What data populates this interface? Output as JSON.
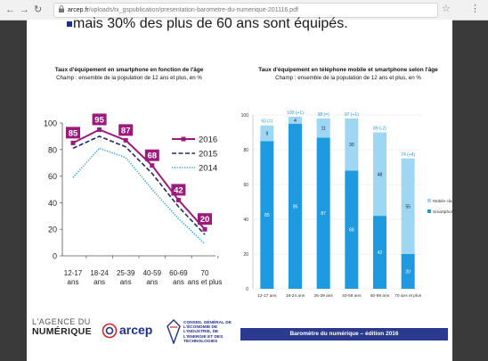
{
  "browser": {
    "url_host": "arcep.fr",
    "url_path": "/uploads/tx_gspublication/presentation-barometre-du-numerique-201116.pdf",
    "menu_icon": "kebab-menu-icon",
    "star_icon": "bookmark-star-icon"
  },
  "slide": {
    "bullet_text": "mais 30% des plus de 60 ans sont équipés.",
    "footer_text": "Baromètre  du numérique – édition 2016",
    "logos": {
      "agence_line1": "L'AGENCE DU",
      "agence_line2": "NUMÉRIQUE",
      "arcep": "arcep",
      "cge": "CONSEIL GÉNÉRAL DE L'ÉCONOMIE DE L'INDUSTRIE, DE L'ÉNERGIE ET DES TECHNOLOGIES"
    }
  },
  "chart_left": {
    "title": "Taux d'équipement en smartphone en fonction de l'âge",
    "subtitle": "Champ : ensemble de la population de 12 ans et plus, en %"
  },
  "chart_right": {
    "title": "Taux d'équipement en téléphone mobile et smartphone selon l'âge",
    "subtitle": "Champ : ensemble de la population de 12 ans et plus, en %"
  },
  "chart_data": [
    {
      "type": "line",
      "categories": [
        "12-17 ans",
        "18-24 ans",
        "25-39 ans",
        "40-59 ans",
        "60-69 ans",
        "70 ans et plus"
      ],
      "ylim": [
        0,
        100
      ],
      "yticks": [
        0,
        20,
        40,
        60,
        80,
        100
      ],
      "series": [
        {
          "name": "2016",
          "values": [
            85,
            95,
            87,
            68,
            42,
            20
          ],
          "color": "#9c1a7c",
          "labeled": true
        },
        {
          "name": "2015",
          "values": [
            81,
            90,
            82,
            62,
            37,
            16
          ],
          "color": "#1d2a6b"
        },
        {
          "name": "2014",
          "values": [
            59,
            81,
            74,
            50,
            28,
            9
          ],
          "color": "#2ea3dc"
        }
      ],
      "legend": "right"
    },
    {
      "type": "bar",
      "stacked": true,
      "categories": [
        "12-17 ans",
        "18-24 ans",
        "25-39 ans",
        "40-59 ans",
        "60-69 ans",
        "70 ans et plus"
      ],
      "ylim": [
        0,
        100
      ],
      "yticks": [
        0,
        20,
        40,
        60,
        80,
        100
      ],
      "series": [
        {
          "name": "Smartphone",
          "values": [
            85,
            95,
            87,
            68,
            42,
            20
          ],
          "color": "#1e9be0"
        },
        {
          "name": "Mobile classique",
          "values": [
            9,
            4,
            11,
            30,
            48,
            55
          ],
          "color": "#9fd6f3"
        }
      ],
      "totals": [
        "93 (=)",
        "100 (+1)",
        "98 (=)",
        "97 (+1)",
        "89 (-2)",
        "74 (+4)"
      ],
      "legend": "right"
    }
  ]
}
